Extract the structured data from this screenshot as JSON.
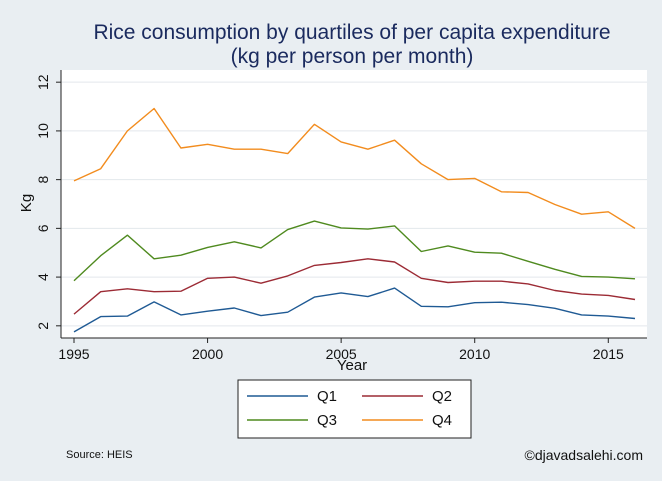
{
  "chart_data": {
    "type": "line",
    "title": "Rice consumption by quartiles of per capita expenditure",
    "subtitle": "(kg per person per month)",
    "xlabel": "Year",
    "ylabel": "Kg",
    "x": [
      1995,
      1996,
      1997,
      1998,
      1999,
      2000,
      2001,
      2002,
      2003,
      2004,
      2005,
      2006,
      2007,
      2008,
      2009,
      2010,
      2011,
      2012,
      2013,
      2014,
      2015,
      2016
    ],
    "xlim": [
      1995,
      2016
    ],
    "ylim": [
      1.5,
      12.5
    ],
    "x_ticks": [
      1995,
      2000,
      2005,
      2010,
      2015
    ],
    "y_ticks": [
      2,
      4,
      6,
      8,
      10,
      12
    ],
    "series": [
      {
        "name": "Q1",
        "color": "#1f5a94",
        "values": [
          1.75,
          2.38,
          2.4,
          2.98,
          2.45,
          2.6,
          2.73,
          2.42,
          2.56,
          3.18,
          3.35,
          3.2,
          3.55,
          2.8,
          2.78,
          2.95,
          2.97,
          2.87,
          2.72,
          2.45,
          2.4,
          2.3
        ]
      },
      {
        "name": "Q2",
        "color": "#9c2b35",
        "values": [
          2.48,
          3.4,
          3.52,
          3.4,
          3.42,
          3.95,
          4.0,
          3.75,
          4.05,
          4.48,
          4.6,
          4.75,
          4.62,
          3.95,
          3.78,
          3.83,
          3.83,
          3.72,
          3.45,
          3.3,
          3.25,
          3.08
        ]
      },
      {
        "name": "Q3",
        "color": "#4f8a1f",
        "values": [
          3.85,
          4.88,
          5.72,
          4.75,
          4.9,
          5.22,
          5.45,
          5.2,
          5.95,
          6.3,
          6.02,
          5.97,
          6.1,
          5.05,
          5.28,
          5.02,
          4.98,
          4.65,
          4.32,
          4.03,
          4.0,
          3.93
        ]
      },
      {
        "name": "Q4",
        "color": "#f28c1e",
        "values": [
          7.95,
          8.45,
          10.0,
          10.92,
          9.3,
          9.45,
          9.25,
          9.25,
          9.07,
          10.27,
          9.55,
          9.25,
          9.62,
          8.65,
          8.0,
          8.05,
          7.5,
          7.47,
          6.98,
          6.58,
          6.68,
          6.0
        ]
      }
    ],
    "legend": {
      "position": "bottom",
      "columns": 2
    },
    "grid": {
      "y": true,
      "x": false
    }
  },
  "note": "Source: HEIS",
  "credit": "©djavadsalehi.com"
}
